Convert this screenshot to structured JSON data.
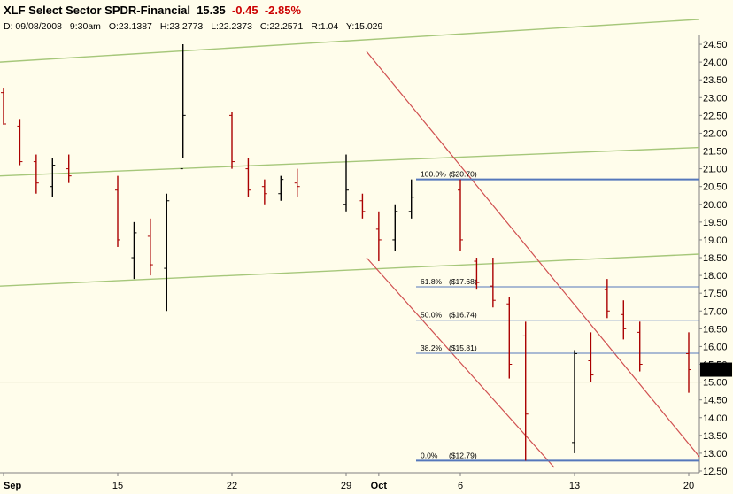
{
  "header": {
    "symbol_title": "XLF Select Sector SPDR-Financial",
    "last": "15.35",
    "change": "-0.45",
    "change_pct": "-2.85%",
    "date_label": "D: 09/08/2008",
    "time": "9:30am",
    "open": "O:23.1387",
    "high": "H:23.2773",
    "low": "L:22.2373",
    "close": "C:22.2571",
    "ratio": "R:1.04",
    "y_readout": "Y:15.029"
  },
  "colors": {
    "background": "#FFFDEB",
    "up_bar": "#000000",
    "down_bar": "#AA0000",
    "channel_green": "#A6C77A",
    "channel_red": "#D05050",
    "fib_blue": "#5577BB",
    "price_badge": "#000000"
  },
  "chart_data": {
    "type": "ohlc",
    "title": "XLF Select Sector SPDR-Financial",
    "ylim": [
      12.5,
      24.75
    ],
    "y_ticks": [
      "12.50",
      "13.00",
      "13.50",
      "14.00",
      "14.50",
      "15.00",
      "15.50",
      "16.00",
      "16.50",
      "17.00",
      "17.50",
      "18.00",
      "18.50",
      "19.00",
      "19.50",
      "20.00",
      "20.50",
      "21.00",
      "21.50",
      "22.00",
      "22.50",
      "23.00",
      "23.50",
      "24.00",
      "24.50"
    ],
    "x_tick_labels": [
      "Sep",
      "15",
      "22",
      "29",
      "Oct",
      "6",
      "13",
      "20"
    ],
    "last_price_label": "15.35",
    "price_series": [
      {
        "date": "2008-09-08",
        "open": 23.14,
        "high": 23.28,
        "low": 22.24,
        "close": 22.26
      },
      {
        "date": "2008-09-09",
        "open": 22.2,
        "high": 22.4,
        "low": 21.1,
        "close": 21.2
      },
      {
        "date": "2008-09-10",
        "open": 21.2,
        "high": 21.4,
        "low": 20.3,
        "close": 20.6
      },
      {
        "date": "2008-09-11",
        "open": 20.5,
        "high": 21.3,
        "low": 20.2,
        "close": 21.1
      },
      {
        "date": "2008-09-12",
        "open": 21.0,
        "high": 21.4,
        "low": 20.6,
        "close": 20.8
      },
      {
        "date": "2008-09-15",
        "open": 20.4,
        "high": 20.8,
        "low": 18.8,
        "close": 19.0
      },
      {
        "date": "2008-09-16",
        "open": 18.5,
        "high": 19.5,
        "low": 17.9,
        "close": 19.2
      },
      {
        "date": "2008-09-17",
        "open": 19.1,
        "high": 19.6,
        "low": 18.0,
        "close": 18.3
      },
      {
        "date": "2008-09-18",
        "open": 18.2,
        "high": 20.3,
        "low": 17.0,
        "close": 20.1
      },
      {
        "date": "2008-09-19",
        "open": 21.0,
        "high": 24.5,
        "low": 21.3,
        "close": 22.5
      },
      {
        "date": "2008-09-22",
        "open": 22.5,
        "high": 22.6,
        "low": 21.0,
        "close": 21.2
      },
      {
        "date": "2008-09-23",
        "open": 21.0,
        "high": 21.3,
        "low": 20.2,
        "close": 20.4
      },
      {
        "date": "2008-09-24",
        "open": 20.5,
        "high": 20.7,
        "low": 20.0,
        "close": 20.3
      },
      {
        "date": "2008-09-25",
        "open": 20.3,
        "high": 20.8,
        "low": 20.1,
        "close": 20.7
      },
      {
        "date": "2008-09-26",
        "open": 20.6,
        "high": 21.0,
        "low": 20.2,
        "close": 20.5
      },
      {
        "date": "2008-09-29",
        "open": 20.0,
        "high": 21.4,
        "low": 19.8,
        "close": 20.4
      },
      {
        "date": "2008-09-30",
        "open": 20.1,
        "high": 20.3,
        "low": 19.6,
        "close": 19.8
      },
      {
        "date": "2008-10-01",
        "open": 19.3,
        "high": 19.8,
        "low": 18.4,
        "close": 19.0
      },
      {
        "date": "2008-10-02",
        "open": 19.0,
        "high": 20.0,
        "low": 18.7,
        "close": 19.8
      },
      {
        "date": "2008-10-03",
        "open": 19.8,
        "high": 20.7,
        "low": 19.6,
        "close": 20.2
      },
      {
        "date": "2008-10-06",
        "open": 20.4,
        "high": 20.7,
        "low": 18.7,
        "close": 19.0
      },
      {
        "date": "2008-10-07",
        "open": 18.4,
        "high": 18.5,
        "low": 17.6,
        "close": 17.8
      },
      {
        "date": "2008-10-08",
        "open": 17.7,
        "high": 18.5,
        "low": 17.1,
        "close": 17.3
      },
      {
        "date": "2008-10-09",
        "open": 17.2,
        "high": 17.4,
        "low": 15.1,
        "close": 15.5
      },
      {
        "date": "2008-10-10",
        "open": 16.3,
        "high": 16.7,
        "low": 12.79,
        "close": 14.1
      },
      {
        "date": "2008-10-13",
        "open": 13.3,
        "high": 15.9,
        "low": 13.0,
        "close": 15.8
      },
      {
        "date": "2008-10-14",
        "open": 15.6,
        "high": 16.4,
        "low": 15.0,
        "close": 15.2
      },
      {
        "date": "2008-10-15",
        "open": 17.6,
        "high": 17.9,
        "low": 16.8,
        "close": 17.0
      },
      {
        "date": "2008-10-16",
        "open": 16.9,
        "high": 17.3,
        "low": 16.2,
        "close": 16.5
      },
      {
        "date": "2008-10-17",
        "open": 16.4,
        "high": 16.7,
        "low": 15.3,
        "close": 15.5
      },
      {
        "date": "2008-10-20",
        "open": 15.8,
        "high": 16.4,
        "low": 14.7,
        "close": 15.35
      }
    ],
    "overlays": {
      "green_channel_lines": [
        {
          "from": {
            "date": "2008-09-08",
            "price": 24.0
          },
          "to": {
            "date": "2008-10-20",
            "price": 25.2
          }
        },
        {
          "from": {
            "date": "2008-09-08",
            "price": 20.8
          },
          "to": {
            "date": "2008-10-20",
            "price": 21.6
          }
        },
        {
          "from": {
            "date": "2008-09-08",
            "price": 17.7
          },
          "to": {
            "date": "2008-10-20",
            "price": 18.6
          }
        }
      ],
      "red_channel_lines": [
        {
          "from": {
            "date": "2008-09-30",
            "price": 24.3
          },
          "to": {
            "date": "2008-10-20",
            "price": 12.9
          }
        },
        {
          "from": {
            "date": "2008-09-30",
            "price": 18.5
          },
          "to": {
            "date": "2008-10-10",
            "price": 12.6
          }
        }
      ],
      "horizontal_line": 15.0
    },
    "fib_levels": [
      {
        "label": "100.0%",
        "price_label": "($20.70)",
        "value": 20.7
      },
      {
        "label": "61.8%",
        "price_label": "($17.68)",
        "value": 17.68
      },
      {
        "label": "50.0%",
        "price_label": "($16.74)",
        "value": 16.74
      },
      {
        "label": "38.2%",
        "price_label": "($15.81)",
        "value": 15.81
      },
      {
        "label": "0.0%",
        "price_label": "($12.79)",
        "value": 12.79
      }
    ]
  }
}
